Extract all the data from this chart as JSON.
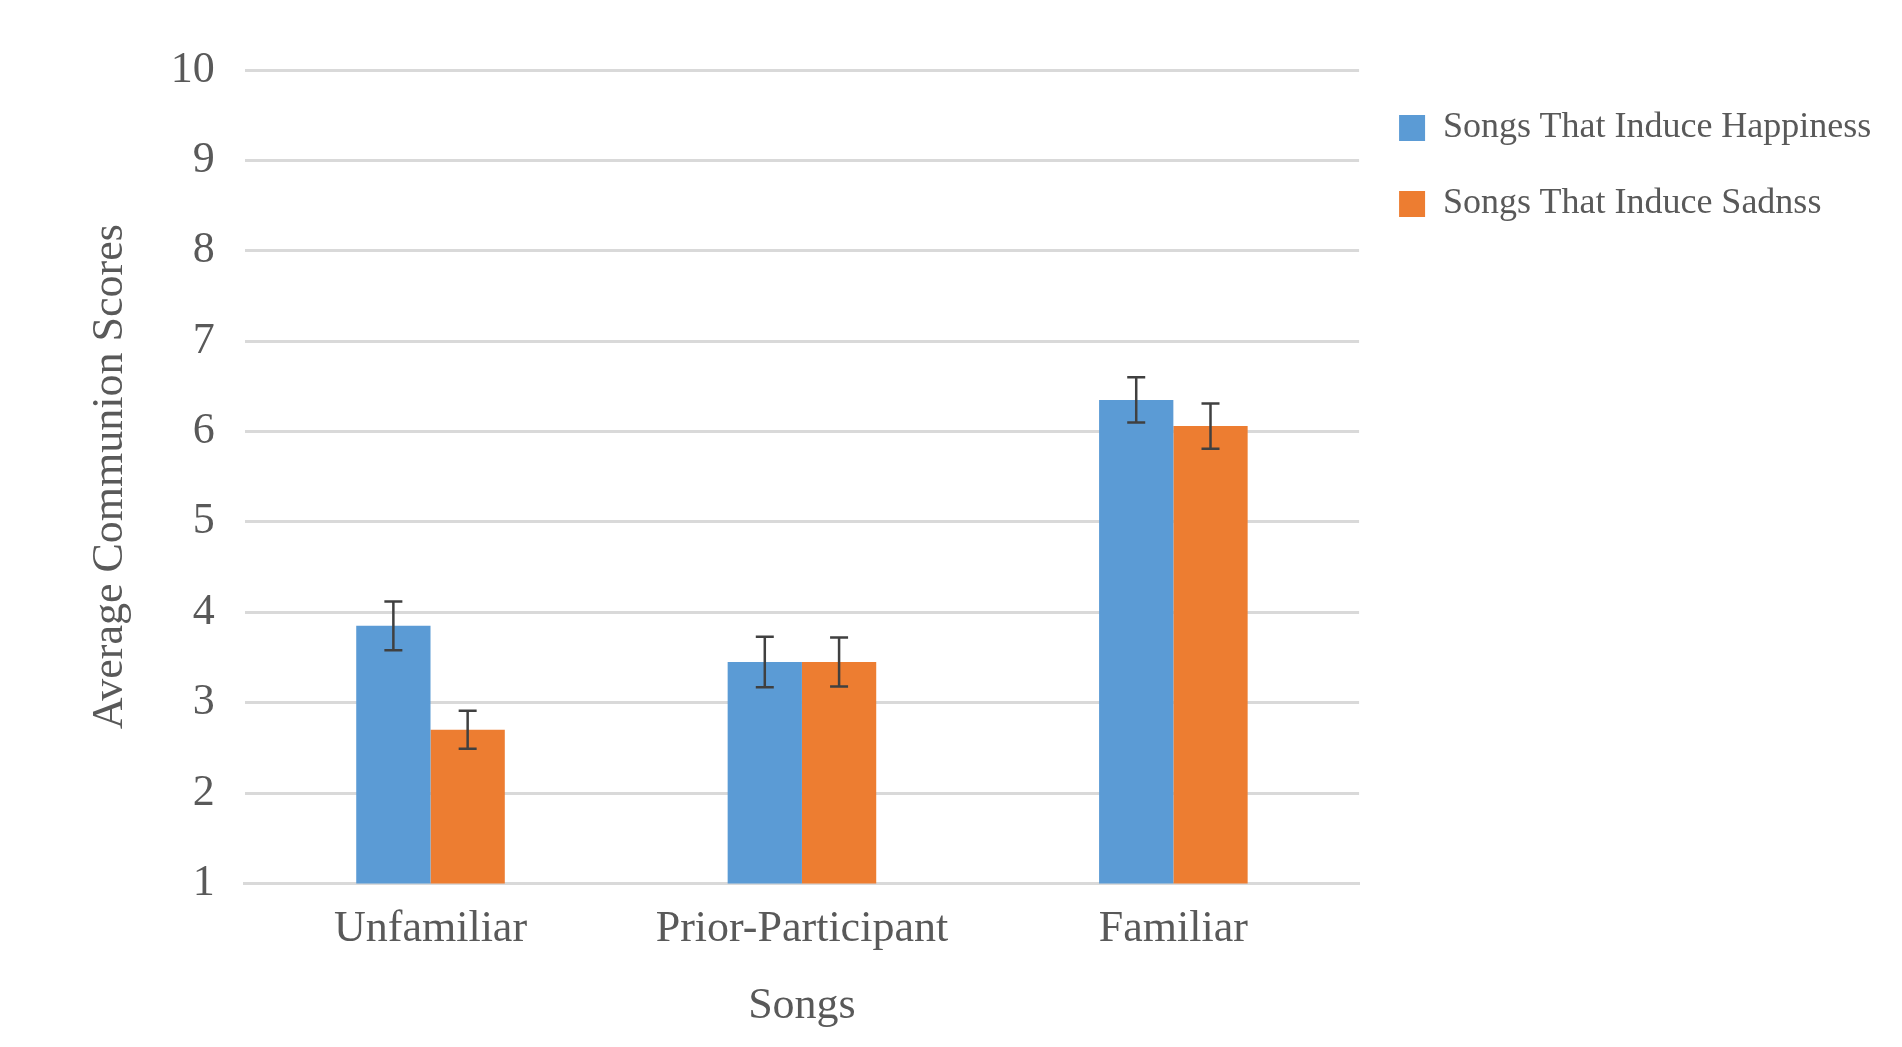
{
  "chart_data": {
    "type": "bar",
    "xlabel": "Songs",
    "ylabel": "Average Communion Scores",
    "categories": [
      "Unfamiliar",
      "Prior-Participant",
      "Familiar"
    ],
    "series": [
      {
        "name": "Songs That Induce Happiness",
        "color": "#5b9bd5",
        "values": [
          3.85,
          3.45,
          6.35
        ],
        "errors": [
          0.27,
          0.28,
          0.25
        ]
      },
      {
        "name": "Songs That Induce Sadnss",
        "color": "#ed7d31",
        "values": [
          2.7,
          3.45,
          6.06
        ],
        "errors": [
          0.21,
          0.27,
          0.25
        ]
      }
    ],
    "ylim": [
      1,
      10
    ],
    "yticks": [
      1,
      2,
      3,
      4,
      5,
      6,
      7,
      8,
      9,
      10
    ],
    "grid": "y",
    "legend": "right"
  }
}
